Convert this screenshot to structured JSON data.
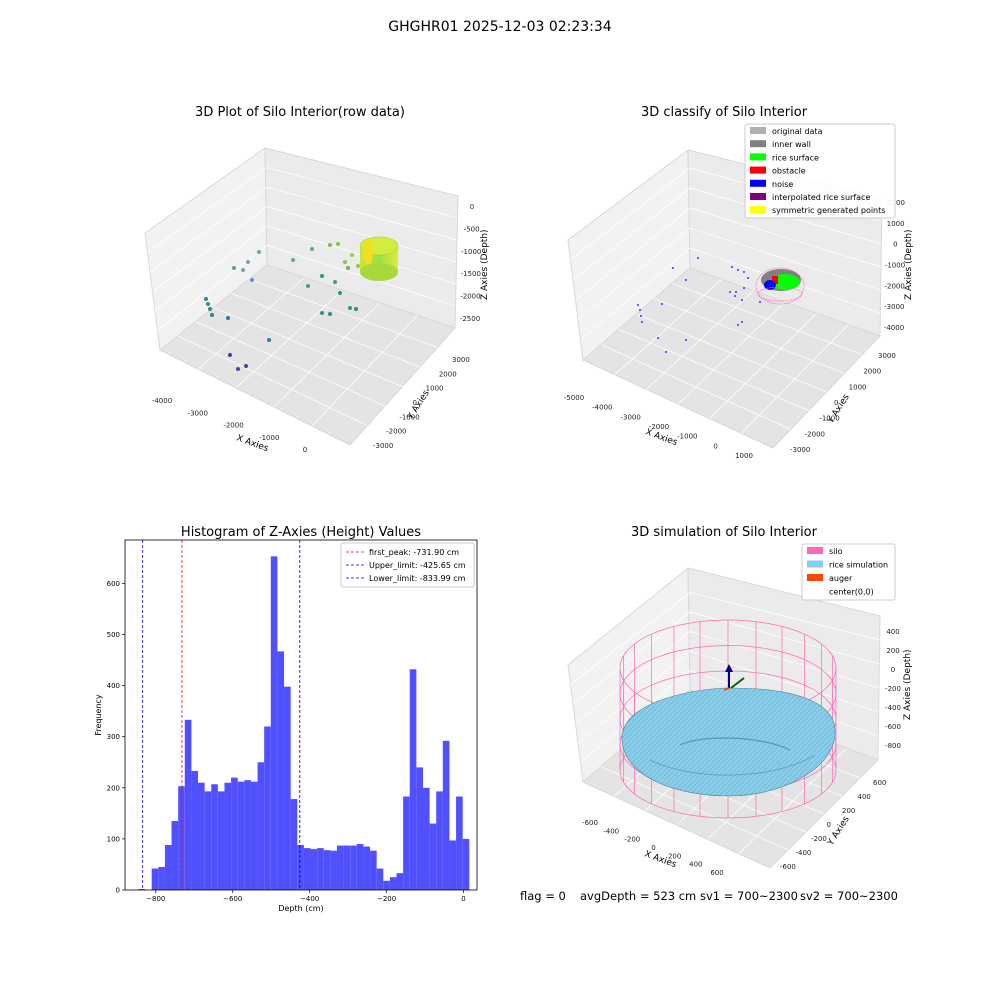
{
  "figure": {
    "suptitle": "GHGHR01 2025-12-03 02:23:34",
    "footer": {
      "flag": "flag = 0",
      "avg_depth": "avgDepth = 523 cm",
      "sv1": "sv1 = 700~2300",
      "sv2": "sv2 = 700~2300"
    }
  },
  "chart_data": [
    {
      "type": "scatter",
      "title": "3D Plot of Silo Interior(row data)",
      "xlabel": "X Axies",
      "ylabel": "Y Axies",
      "zlabel": "Z Axies (Depth)",
      "x_ticks": [
        "-4000",
        "-3000",
        "-2000",
        "-1000",
        "0"
      ],
      "y_ticks": [
        "-3000",
        "-2000",
        "-1000",
        "0",
        "1000",
        "2000",
        "3000"
      ],
      "z_ticks": [
        "0",
        "-500",
        "-1000",
        "-1500",
        "-2000",
        "-2500"
      ],
      "colormap": "viridis"
    },
    {
      "type": "scatter",
      "title": "3D classify of Silo Interior",
      "xlabel": "X Axies",
      "ylabel": "Y Axies",
      "zlabel": "Z Axies (Depth)",
      "x_ticks": [
        "-5000",
        "-4000",
        "-3000",
        "-2000",
        "-1000",
        "0",
        "1000"
      ],
      "y_ticks": [
        "-3000",
        "-2000",
        "-1000",
        "0",
        "1000",
        "2000",
        "3000"
      ],
      "z_ticks": [
        "2000",
        "1000",
        "0",
        "-1000",
        "-2000",
        "-3000",
        "-4000"
      ],
      "legend": [
        {
          "label": "original data",
          "color": "#b0b0b0"
        },
        {
          "label": "inner wall",
          "color": "#808080"
        },
        {
          "label": "rice surface",
          "color": "#00ff00"
        },
        {
          "label": "obstacle",
          "color": "#ff0000"
        },
        {
          "label": "noise",
          "color": "#0000ff"
        },
        {
          "label": "interpolated rice surface",
          "color": "#800080"
        },
        {
          "label": "symmetric generated points",
          "color": "#ffff00"
        }
      ]
    },
    {
      "type": "bar",
      "title": "Histogram of Z-Axies (Height) Values",
      "xlabel": "Depth (cm)",
      "ylabel": "Frequency",
      "xlim": [
        -880,
        35
      ],
      "ylim": [
        0,
        685
      ],
      "x_ticks": [
        -800,
        -600,
        -400,
        -200,
        0
      ],
      "y_ticks": [
        0,
        100,
        200,
        300,
        400,
        500,
        600
      ],
      "bin_start": -845,
      "bin_width": 17.2,
      "values": [
        2,
        0,
        42,
        45,
        88,
        135,
        203,
        333,
        233,
        210,
        193,
        207,
        193,
        210,
        220,
        212,
        215,
        212,
        250,
        320,
        653,
        467,
        398,
        178,
        88,
        82,
        80,
        82,
        78,
        77,
        87,
        87,
        87,
        90,
        85,
        77,
        42,
        18,
        25,
        33,
        183,
        432,
        240,
        200,
        130,
        193,
        292,
        97,
        183,
        100
      ],
      "bar_color": "#5050ff",
      "lines": [
        {
          "label": "first_peak: -731.90 cm",
          "x": -731.9,
          "color": "#ff0000"
        },
        {
          "label": "Upper_limit: -425.65 cm",
          "x": -425.65,
          "color": "#0000cc"
        },
        {
          "label": "Lower_limit: -833.99 cm",
          "x": -833.99,
          "color": "#0000cc"
        }
      ]
    },
    {
      "type": "area",
      "title": "3D simulation of Silo Interior",
      "xlabel": "X Axies",
      "ylabel": "Y Axies",
      "zlabel": "Z Axies (Depth)",
      "x_ticks": [
        "-600",
        "-400",
        "-200",
        "0",
        "200",
        "400",
        "600"
      ],
      "y_ticks": [
        "-600",
        "-400",
        "-200",
        "0",
        "200",
        "400",
        "600"
      ],
      "z_ticks": [
        "400",
        "200",
        "0",
        "-200",
        "-400",
        "-600",
        "-800"
      ],
      "legend": [
        {
          "label": "silo",
          "color": "#ff69b4"
        },
        {
          "label": "rice simulation",
          "color": "#87ceeb"
        },
        {
          "label": "auger",
          "color": "#ff4500"
        },
        {
          "label": "center(0,0)",
          "color": ""
        }
      ]
    }
  ]
}
